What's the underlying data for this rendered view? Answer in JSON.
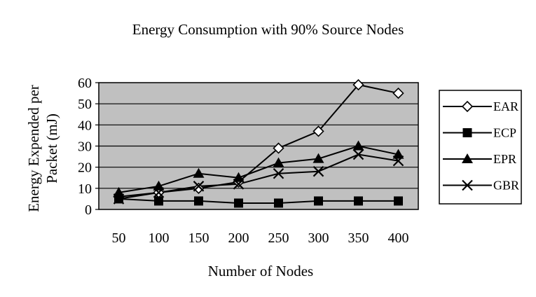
{
  "chart_data": {
    "type": "line",
    "title": "Energy Consumption with 90% Source Nodes",
    "xlabel": "Number of Nodes",
    "ylabel": "Energy Expended per Packet (mJ)",
    "ylabel_lines": [
      "Energy Expended per",
      "Packet (mJ)"
    ],
    "categories": [
      "50",
      "100",
      "150",
      "200",
      "250",
      "300",
      "350",
      "400"
    ],
    "ylim": [
      0,
      60
    ],
    "yticks": [
      0,
      10,
      20,
      30,
      40,
      50,
      60
    ],
    "grid": true,
    "plot_background": "#c0c0c0",
    "legend_position": "right",
    "series": [
      {
        "name": "EAR",
        "marker": "diamond-open",
        "values": [
          6,
          8,
          10,
          13,
          29,
          37,
          59,
          55
        ]
      },
      {
        "name": "ECP",
        "marker": "square-filled",
        "values": [
          5,
          4,
          4,
          3,
          3,
          4,
          4,
          4
        ]
      },
      {
        "name": "EPR",
        "marker": "triangle-filled",
        "values": [
          8,
          11,
          17,
          15,
          22,
          24,
          30,
          26
        ]
      },
      {
        "name": "GBR",
        "marker": "x",
        "values": [
          5,
          8,
          11,
          12,
          17,
          18,
          26,
          23
        ]
      }
    ]
  }
}
